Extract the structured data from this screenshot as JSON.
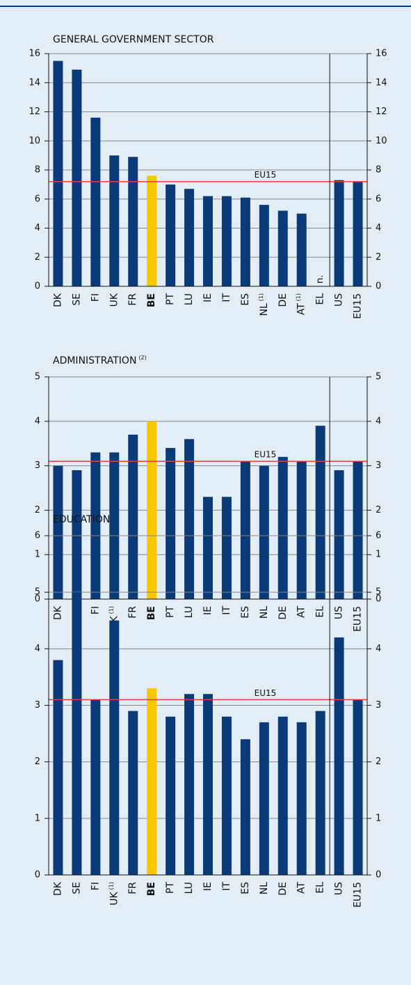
{
  "chart_data": [
    {
      "type": "bar",
      "title": "GENERAL GOVERNMENT SECTOR",
      "categories": [
        "DK",
        "SE",
        "FI",
        "UK",
        "FR",
        "BE",
        "PT",
        "LU",
        "IE",
        "IT",
        "ES",
        "NL",
        "DE",
        "AT",
        "EL",
        "US",
        "EU15"
      ],
      "category_notes": [
        null,
        null,
        null,
        null,
        null,
        null,
        null,
        null,
        null,
        null,
        null,
        "(1)",
        null,
        "(1)",
        null,
        null,
        null
      ],
      "values": [
        15.5,
        14.9,
        11.6,
        9.0,
        8.9,
        7.6,
        7.0,
        6.7,
        6.2,
        6.2,
        6.1,
        5.6,
        5.2,
        5.0,
        null,
        7.3,
        7.2
      ],
      "missing_label": "n.",
      "colors": [
        "#0b3a78",
        "#0b3a78",
        "#0b3a78",
        "#0b3a78",
        "#0b3a78",
        "#f7c600",
        "#0b3a78",
        "#0b3a78",
        "#0b3a78",
        "#0b3a78",
        "#0b3a78",
        "#0b3a78",
        "#0b3a78",
        "#0b3a78",
        "#0b3a78",
        "#0b3a78",
        "#0b3a78"
      ],
      "highlight_color": "#f7c600",
      "separator_index": 15,
      "reference_line": {
        "value": 7.2,
        "label": "EU15",
        "color": "#e0403a"
      },
      "ylim": [
        0,
        16
      ],
      "yticks": [
        0,
        2,
        4,
        6,
        8,
        10,
        12,
        14,
        16
      ],
      "grid": true
    },
    {
      "type": "bar",
      "title": "ADMINISTRATION",
      "title_note": "(2)",
      "categories": [
        "DK",
        "SE",
        "FI",
        "UK",
        "FR",
        "BE",
        "PT",
        "LU",
        "IE",
        "IT",
        "ES",
        "NL",
        "DE",
        "AT",
        "EL",
        "US",
        "EU15"
      ],
      "category_notes": [
        null,
        null,
        null,
        "(1)",
        null,
        null,
        null,
        null,
        null,
        null,
        null,
        null,
        null,
        null,
        null,
        null,
        null
      ],
      "values": [
        3.0,
        2.9,
        3.3,
        3.3,
        3.7,
        4.0,
        3.4,
        3.6,
        2.3,
        2.3,
        3.1,
        3.0,
        3.2,
        3.1,
        3.9,
        2.9,
        3.1
      ],
      "colors": [
        "#0b3a78",
        "#0b3a78",
        "#0b3a78",
        "#0b3a78",
        "#0b3a78",
        "#f7c600",
        "#0b3a78",
        "#0b3a78",
        "#0b3a78",
        "#0b3a78",
        "#0b3a78",
        "#0b3a78",
        "#0b3a78",
        "#0b3a78",
        "#0b3a78",
        "#0b3a78",
        "#0b3a78"
      ],
      "highlight_color": "#f7c600",
      "separator_index": 15,
      "reference_line": {
        "value": 3.1,
        "label": "EU15",
        "color": "#e0403a"
      },
      "ylim": [
        0,
        5
      ],
      "yticks": [
        0,
        1,
        2,
        3,
        4,
        5
      ],
      "grid": true
    },
    {
      "type": "bar",
      "title": "EDUCATION",
      "categories": [
        "DK",
        "SE",
        "FI",
        "UK",
        "FR",
        "BE",
        "PT",
        "LU",
        "IE",
        "IT",
        "ES",
        "NL",
        "DE",
        "AT",
        "EL",
        "US",
        "EU15"
      ],
      "category_notes": [
        null,
        null,
        null,
        "(1)",
        null,
        null,
        null,
        null,
        null,
        null,
        null,
        null,
        null,
        null,
        null,
        null,
        null
      ],
      "values": [
        3.8,
        5.0,
        3.1,
        4.5,
        2.9,
        3.3,
        2.8,
        3.2,
        3.2,
        2.8,
        2.4,
        2.7,
        2.8,
        2.7,
        2.9,
        4.2,
        3.1
      ],
      "colors": [
        "#0b3a78",
        "#0b3a78",
        "#0b3a78",
        "#0b3a78",
        "#0b3a78",
        "#f7c600",
        "#0b3a78",
        "#0b3a78",
        "#0b3a78",
        "#0b3a78",
        "#0b3a78",
        "#0b3a78",
        "#0b3a78",
        "#0b3a78",
        "#0b3a78",
        "#0b3a78",
        "#0b3a78"
      ],
      "highlight_color": "#f7c600",
      "separator_index": 15,
      "reference_line": {
        "value": 3.1,
        "label": "EU15",
        "color": "#e0403a"
      },
      "ylim": [
        0,
        6
      ],
      "yticks": [
        0,
        1,
        2,
        3,
        4,
        5,
        6
      ],
      "grid": true
    }
  ]
}
